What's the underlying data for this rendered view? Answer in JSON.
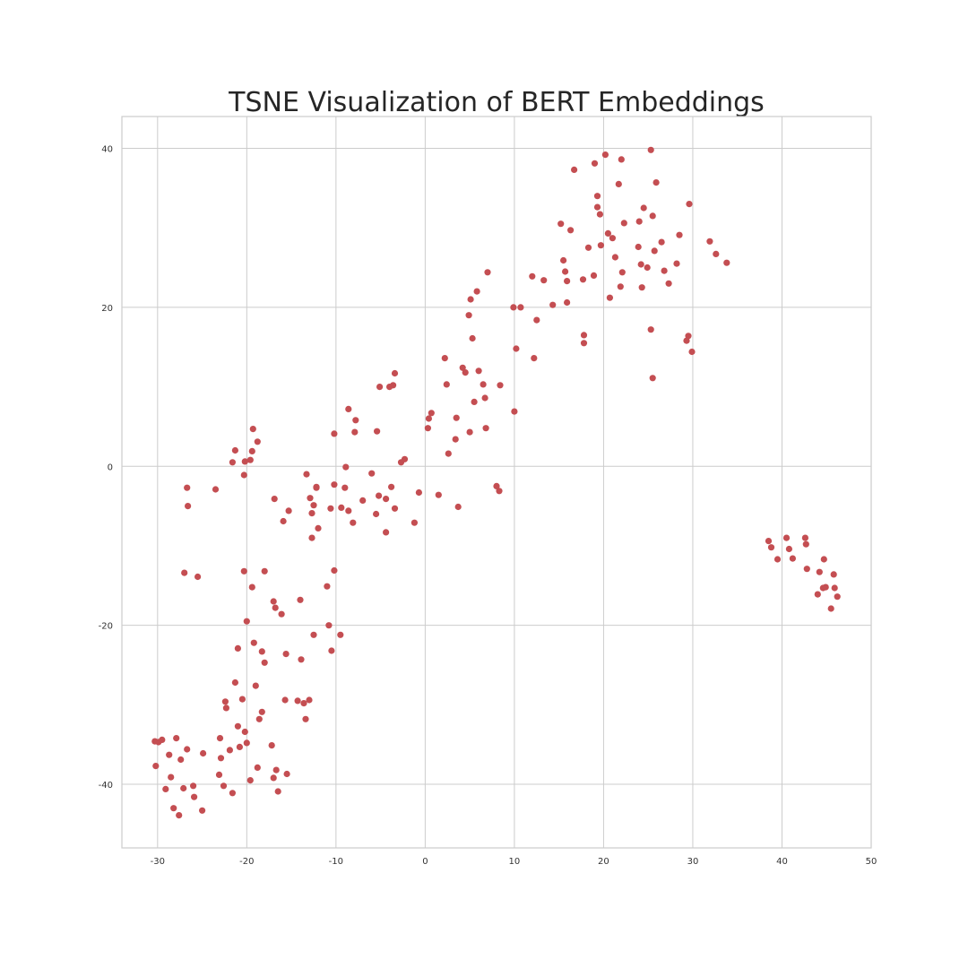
{
  "chart_data": {
    "type": "scatter",
    "title": "TSNE Visualization of BERT Embeddings",
    "xlabel": "",
    "ylabel": "",
    "xlim": [
      -34,
      50
    ],
    "ylim": [
      -48,
      44
    ],
    "xticks": [
      -30,
      -20,
      -10,
      0,
      10,
      20,
      30,
      40,
      50
    ],
    "yticks": [
      -40,
      -20,
      0,
      20,
      40
    ],
    "grid": true,
    "point_color": "#c44e52",
    "series": [
      {
        "x": [
          -30.2,
          -29.9,
          -29.5,
          -29.1,
          -28.7,
          -28.5,
          -28.2,
          -27.9,
          -27.6,
          -27.4,
          -27.1,
          -26.7,
          -26.0,
          -25.9,
          -25.0,
          -23.1,
          -22.9,
          -22.6,
          -22.3,
          -21.9,
          -21.6,
          -21.3,
          -21.0,
          -20.8,
          -20.5,
          -20.2,
          -20.0,
          -19.6,
          -19.2,
          -19.0,
          -18.8,
          -18.6,
          -18.3,
          -18.0,
          -17.2,
          -17.0,
          -16.7,
          -16.5,
          -16.1,
          -15.7,
          -15.5,
          -14.0,
          -13.9,
          -13.4,
          -13.0,
          -12.5,
          -11.0,
          -10.8,
          -10.5,
          -10.2,
          -9.5,
          -30.3,
          -27.0,
          -25.5,
          -24.9,
          -23.0,
          -22.4,
          -21.0,
          -20.0,
          -19.4,
          -20.3,
          -18.3,
          -18.0,
          -17.0,
          -16.8,
          -15.6,
          -14.3,
          -12.7,
          -12.0,
          -13.6,
          -12.9,
          -10.6,
          -9.4,
          -23.5,
          -20.2,
          -19.4,
          -18.8,
          -19.6,
          -19.3,
          -21.6,
          -21.3,
          -20.3,
          -26.7,
          -26.6,
          -16.9,
          -15.9,
          -15.3,
          -13.3,
          -12.7,
          -12.5,
          -12.2,
          -12.2,
          -10.2,
          -8.9,
          -8.6,
          -8.1,
          -7.0,
          -6.0,
          -5.5,
          -5.2,
          -4.4,
          -4.4,
          -3.8,
          -3.4,
          -2.7,
          -2.3,
          -1.2,
          -0.7,
          -10.2,
          -8.6,
          -7.9,
          -7.8,
          -5.4,
          -5.1,
          -4.0,
          -3.6,
          -3.4,
          0.3,
          0.4,
          0.7,
          -9.0,
          1.5,
          2.2,
          2.4,
          2.6,
          3.4,
          3.5,
          3.7,
          4.2,
          4.5,
          4.9,
          5.0,
          5.1,
          5.3,
          5.5,
          5.8,
          6.0,
          6.5,
          6.7,
          6.8,
          7.0,
          8.0,
          8.3,
          8.4,
          9.9,
          10.0,
          10.2,
          10.7,
          12.0,
          12.2,
          12.5,
          13.3,
          14.3,
          15.2,
          15.5,
          15.7,
          15.9,
          15.9,
          16.3,
          16.7,
          17.7,
          17.8,
          17.8,
          18.3,
          18.9,
          19.3,
          19.3,
          19.6,
          19.7,
          20.5,
          20.7,
          21.0,
          21.3,
          21.7,
          21.9,
          22.0,
          22.1,
          22.3,
          23.9,
          24.0,
          24.2,
          24.3,
          24.5,
          24.9,
          25.3,
          25.5,
          25.5,
          25.7,
          25.9,
          26.5,
          26.8,
          27.3,
          28.2,
          28.5,
          29.3,
          29.5,
          29.6,
          29.9,
          31.9,
          32.6,
          33.8,
          25.3,
          20.2,
          19.0,
          38.5,
          38.8,
          39.5,
          40.5,
          40.8,
          41.2,
          42.6,
          42.7,
          42.8,
          44.0,
          44.2,
          44.6,
          44.7,
          45.5,
          45.8,
          45.9,
          46.2,
          44.9
        ],
        "y": [
          -37.7,
          -34.7,
          -34.4,
          -40.6,
          -36.3,
          -39.1,
          -43.0,
          -34.2,
          -43.9,
          -36.9,
          -40.5,
          -35.6,
          -40.2,
          -41.6,
          -43.3,
          -38.8,
          -36.7,
          -40.2,
          -30.4,
          -35.7,
          -41.1,
          -27.2,
          -32.7,
          -35.3,
          -29.3,
          -33.4,
          -34.8,
          -39.5,
          -22.2,
          -27.6,
          -37.9,
          -31.8,
          -23.3,
          -24.7,
          -35.1,
          -39.2,
          -38.2,
          -40.9,
          -18.6,
          -29.4,
          -38.7,
          -16.8,
          -24.3,
          -31.8,
          -29.4,
          -21.2,
          -15.1,
          -20.0,
          -23.2,
          -13.1,
          -21.2,
          -34.6,
          -13.4,
          -13.9,
          -36.1,
          -34.2,
          -29.6,
          -22.9,
          -19.5,
          -15.2,
          -13.2,
          -30.9,
          -13.2,
          -17.0,
          -17.8,
          -23.6,
          -29.5,
          -9.0,
          -7.8,
          -29.8,
          -4.0,
          -5.3,
          -5.2,
          -2.9,
          0.6,
          1.9,
          3.1,
          0.8,
          4.7,
          0.5,
          2.0,
          -1.1,
          -2.7,
          -5.0,
          -4.1,
          -6.9,
          -5.6,
          -1.0,
          -5.9,
          -4.9,
          -2.7,
          -2.6,
          -2.3,
          -0.1,
          -5.6,
          -7.1,
          -4.3,
          -0.9,
          -6.0,
          -3.7,
          -8.3,
          -4.1,
          -2.6,
          -5.3,
          0.5,
          0.9,
          -7.1,
          -3.3,
          4.1,
          7.2,
          4.3,
          5.8,
          4.4,
          10.0,
          10.0,
          10.2,
          11.7,
          4.8,
          6.0,
          6.7,
          -2.7,
          -3.6,
          13.6,
          10.3,
          1.6,
          3.4,
          6.1,
          -5.1,
          12.4,
          11.8,
          19.0,
          4.3,
          21.0,
          16.1,
          8.1,
          22.0,
          12.0,
          10.3,
          8.6,
          4.8,
          24.4,
          -2.5,
          -3.1,
          10.2,
          20.0,
          6.9,
          14.8,
          20.0,
          23.9,
          13.6,
          18.4,
          23.4,
          20.3,
          30.5,
          25.9,
          24.5,
          20.6,
          23.3,
          29.7,
          37.3,
          23.5,
          16.5,
          15.5,
          27.5,
          24.0,
          32.6,
          34.0,
          31.7,
          27.8,
          29.3,
          21.2,
          28.7,
          26.3,
          35.5,
          22.6,
          38.6,
          24.4,
          30.6,
          27.6,
          30.8,
          25.4,
          22.5,
          32.5,
          25.0,
          17.2,
          31.5,
          11.1,
          27.1,
          35.7,
          28.2,
          24.6,
          23.0,
          25.5,
          29.1,
          15.8,
          16.4,
          33.0,
          14.4,
          28.3,
          26.7,
          25.6,
          39.8,
          39.2,
          38.1,
          -9.4,
          -10.2,
          -11.7,
          -9.0,
          -10.4,
          -11.6,
          -9.0,
          -9.8,
          -12.9,
          -16.1,
          -13.3,
          -15.3,
          -11.7,
          -17.9,
          -13.6,
          -15.3,
          -16.4,
          -15.2
        ]
      }
    ]
  }
}
